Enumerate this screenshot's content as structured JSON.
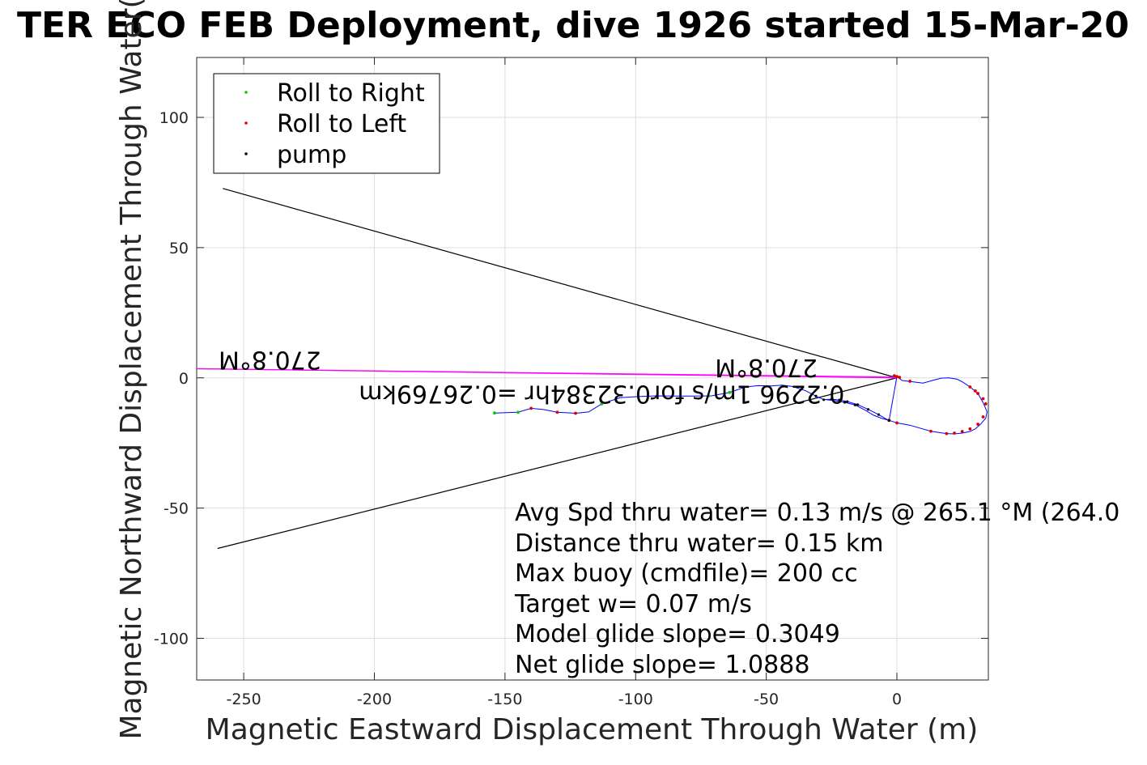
{
  "chart_data": {
    "type": "line",
    "title": "TER ECO FEB Deployment, dive 1926 started 15-Mar-20",
    "xlabel": "Magnetic Eastward Displacement Through Water (m)",
    "ylabel": "Magnetic Northward Displacement Through Water(",
    "xlim": [
      -268,
      35
    ],
    "ylim": [
      -116,
      123
    ],
    "xticks": [
      -250,
      -200,
      -150,
      -100,
      -50,
      0
    ],
    "yticks": [
      -100,
      -50,
      0,
      50,
      100
    ],
    "grid": true,
    "legend": {
      "placement": "top-left",
      "entries": [
        {
          "label": "Roll to Right",
          "color": "#00cc00"
        },
        {
          "label": "Roll to Left",
          "color": "#dd0000"
        },
        {
          "label": "pump",
          "color": "#000000"
        }
      ]
    },
    "track": {
      "name": "track",
      "color": "#0000ff",
      "x": [
        -154,
        -145,
        -140,
        -135,
        -130,
        -123,
        -118,
        -113,
        -106,
        -99,
        -92,
        -85,
        -78,
        -71,
        -64,
        -58,
        -53,
        -48,
        -44,
        -40,
        -35,
        -31,
        -28,
        -25,
        -22,
        -19,
        -15,
        -11,
        -7,
        -3,
        0,
        2,
        6,
        10,
        14,
        17,
        20,
        23,
        25,
        28,
        31,
        33,
        34.5,
        34,
        32,
        30,
        28,
        25,
        22,
        19,
        13,
        5,
        0,
        -3,
        -6,
        -9,
        -12,
        -16,
        -20,
        -24,
        -27
      ],
      "y": [
        -13.5,
        -13.2,
        -11.7,
        -12.2,
        -13.2,
        -13.6,
        -13.1,
        -10.0,
        -7.6,
        -7.2,
        -6.9,
        -7.0,
        -7.0,
        -6.9,
        -5.6,
        -3.5,
        -3.0,
        -3.1,
        -2.8,
        -3.3,
        -4.9,
        -7.0,
        -8.4,
        -8.2,
        -8.5,
        -9.1,
        -10.3,
        -12.1,
        -14.1,
        -16.4,
        0.5,
        -1.0,
        -1.5,
        -2.0,
        -0.9,
        -0.1,
        0.0,
        -0.5,
        -1.5,
        -3.5,
        -6.0,
        -9.5,
        -13.0,
        -15.5,
        -17.8,
        -19.6,
        -20.6,
        -21.2,
        -21.5,
        -21.4,
        -20.5,
        -18.2,
        -17.3,
        -16.3,
        -15.5,
        -14.3,
        -12.5,
        -10.4,
        -9.4,
        -8.7,
        -8.4
      ]
    },
    "roll_right": {
      "x": [
        -154,
        -145,
        -113,
        -72,
        -64
      ],
      "y": [
        -13.5,
        -13.2,
        -10.0,
        -6.9,
        -5.6
      ]
    },
    "roll_left": {
      "x": [
        -140,
        -130,
        -123,
        0,
        1,
        -1,
        5,
        28,
        30,
        31,
        33,
        34,
        33,
        31,
        28,
        25,
        22,
        19,
        13,
        0,
        -3
      ],
      "y": [
        -11.7,
        -13.2,
        -13.6,
        0.5,
        0.2,
        0.8,
        -1.3,
        -3.5,
        -5.0,
        -6.0,
        -8.0,
        -10.0,
        -15.0,
        -17.8,
        -19.6,
        -20.6,
        -21.2,
        -21.4,
        -20.5,
        -17.3,
        -16.3
      ]
    },
    "pump": {
      "x": [
        -31,
        -28,
        -25,
        -22,
        -19,
        -15,
        -11,
        -7,
        -3,
        -16,
        -20
      ],
      "y": [
        -7.0,
        -8.4,
        -8.2,
        -8.5,
        -9.1,
        -10.3,
        -12.1,
        -14.1,
        -16.4,
        -10.4,
        -9.4
      ]
    },
    "wedge_lines": {
      "color": "#000000",
      "segments": [
        {
          "x": [
            -258,
            0
          ],
          "y": [
            72.7,
            0
          ]
        },
        {
          "x": [
            -260,
            0
          ],
          "y": [
            -65.5,
            0
          ]
        }
      ]
    },
    "current_lines": {
      "color": "#ff00ff",
      "segments": [
        {
          "x": [
            -268,
            0
          ],
          "y": [
            3.5,
            0
          ]
        },
        {
          "x": [
            -268,
            0
          ],
          "y": [
            3.5,
            0.3
          ]
        }
      ]
    },
    "flipped_labels": [
      {
        "text": "270.8°M",
        "x": -240,
        "y": 10
      },
      {
        "text": "0.2296 1m/s for0.32384hr =0.26769km",
        "x": -113,
        "y": -3
      },
      {
        "text": "270.8°M",
        "x": -50,
        "y": 7
      }
    ],
    "annotation_lines": [
      "Avg Spd thru water=  0.13 m/s @ 265.1 °M (264.0",
      "Distance thru water=  0.15 km",
      "Max buoy (cmdfile)= 200 cc",
      "Target w= 0.07 m/s",
      "Model glide slope= 0.3049",
      "Net glide slope= 1.0888"
    ]
  }
}
